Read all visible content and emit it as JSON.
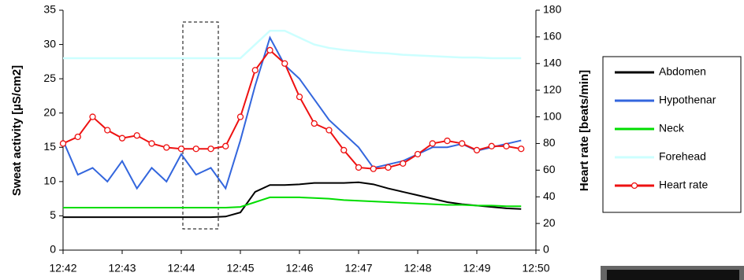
{
  "chart_data": {
    "type": "line",
    "x": [
      0,
      0.25,
      0.5,
      0.75,
      1,
      1.25,
      1.5,
      1.75,
      2,
      2.25,
      2.5,
      2.75,
      3,
      3.25,
      3.5,
      3.75,
      4,
      4.25,
      4.5,
      4.75,
      5,
      5.25,
      5.5,
      5.75,
      6,
      6.25,
      6.5,
      6.75,
      7,
      7.25,
      7.5,
      7.75
    ],
    "xlim": [
      0,
      8
    ],
    "xticks": [
      {
        "value": 0,
        "label": "12:42"
      },
      {
        "value": 1,
        "label": "12:43"
      },
      {
        "value": 2,
        "label": "12:44"
      },
      {
        "value": 3,
        "label": "12:45"
      },
      {
        "value": 4,
        "label": "12:46"
      },
      {
        "value": 5,
        "label": "12:47"
      },
      {
        "value": 6,
        "label": "12:48"
      },
      {
        "value": 7,
        "label": "12:49"
      },
      {
        "value": 8,
        "label": "12:50"
      }
    ],
    "y_label": "Sweat activity [µS/cm2]",
    "y2_label": "Heart rate [beats/min]",
    "ylim": [
      0,
      35
    ],
    "yticks": [
      0,
      5,
      10,
      15,
      20,
      25,
      30,
      35
    ],
    "y2lim": [
      0,
      180
    ],
    "y2ticks": [
      0,
      20,
      40,
      60,
      80,
      100,
      120,
      140,
      160,
      180
    ],
    "grid": false,
    "legend": "right",
    "series": [
      {
        "name": "Abdomen",
        "color": "#000000",
        "values": [
          4.8,
          4.8,
          4.8,
          4.8,
          4.8,
          4.8,
          4.8,
          4.8,
          4.8,
          4.8,
          4.8,
          4.9,
          5.5,
          8.5,
          9.5,
          9.5,
          9.6,
          9.8,
          9.8,
          9.8,
          9.9,
          9.6,
          9.0,
          8.5,
          8.0,
          7.5,
          7.0,
          6.7,
          6.5,
          6.3,
          6.1,
          6.0
        ]
      },
      {
        "name": "Hypothenar",
        "color": "#3366dd",
        "values": [
          16,
          11,
          12,
          10,
          13,
          9,
          12,
          10,
          14,
          11,
          12,
          9,
          16,
          24,
          31,
          27,
          25,
          22,
          19,
          17,
          15,
          12,
          12.5,
          13,
          14,
          15,
          15,
          15.5,
          14.5,
          15,
          15.5,
          16
        ]
      },
      {
        "name": "Neck",
        "color": "#00dd00",
        "values": [
          6.2,
          6.2,
          6.2,
          6.2,
          6.2,
          6.2,
          6.2,
          6.2,
          6.2,
          6.2,
          6.2,
          6.2,
          6.3,
          7.0,
          7.7,
          7.7,
          7.7,
          7.6,
          7.5,
          7.3,
          7.2,
          7.1,
          7.0,
          6.9,
          6.8,
          6.7,
          6.6,
          6.6,
          6.5,
          6.5,
          6.4,
          6.4
        ]
      },
      {
        "name": "Forehead",
        "color": "#ccffff",
        "values": [
          28,
          28,
          28,
          28,
          28,
          28,
          28,
          28,
          28,
          28,
          28,
          28,
          28,
          30,
          32,
          32,
          31,
          30,
          29.5,
          29.2,
          29,
          28.8,
          28.7,
          28.5,
          28.4,
          28.3,
          28.2,
          28.1,
          28.1,
          28,
          28,
          28
        ]
      },
      {
        "name": "Heart rate",
        "color": "#ee1111",
        "axis": "y2",
        "marker": "circle",
        "values": [
          80,
          85,
          100,
          90,
          84,
          86,
          80,
          77,
          76,
          76,
          76,
          78,
          100,
          135,
          150,
          140,
          115,
          95,
          90,
          75,
          62,
          61,
          62,
          65,
          72,
          80,
          82,
          80,
          75,
          78,
          78,
          76
        ]
      }
    ]
  }
}
